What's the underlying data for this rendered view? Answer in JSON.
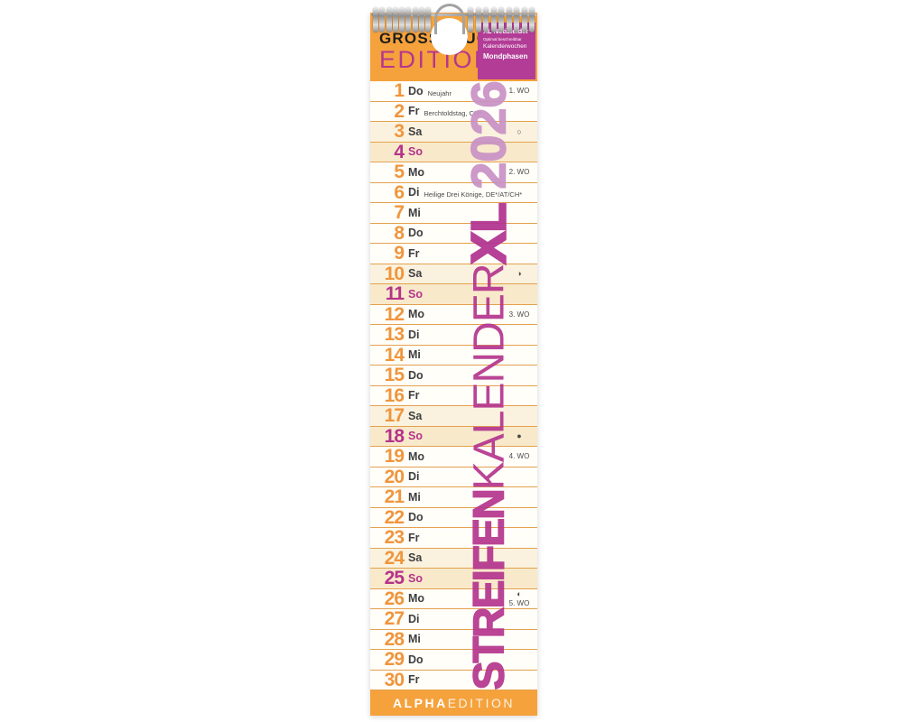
{
  "product": {
    "header": {
      "edition_line1": "GROSSDRUCK",
      "edition_line2": "EDITION",
      "info_box": {
        "line1": "XL Notizfelder",
        "line2": "Optimal beschreibbar",
        "line3": "Kalenderwochen",
        "line4": "Mondphasen"
      }
    },
    "vertical_title": {
      "word_streifen": "STREIFEN",
      "word_kalender": "KALENDER",
      "word_xl": "XL",
      "year": "2026"
    },
    "footer": {
      "brand_bold": "ALPHA",
      "brand_light": "EDITION"
    },
    "moon_glyphs": {
      "full": "○",
      "last": "◑",
      "new": "●",
      "first": "◐"
    },
    "days": [
      {
        "num": "1",
        "abbr": "Do",
        "holiday": "Neujahr",
        "week": "1. WO",
        "moon": ""
      },
      {
        "num": "2",
        "abbr": "Fr",
        "holiday": "Berchtoldstag, CH*",
        "week": "",
        "moon": ""
      },
      {
        "num": "3",
        "abbr": "Sa",
        "holiday": "",
        "week": "",
        "moon": "full"
      },
      {
        "num": "4",
        "abbr": "So",
        "holiday": "",
        "week": "",
        "moon": ""
      },
      {
        "num": "5",
        "abbr": "Mo",
        "holiday": "",
        "week": "2. WO",
        "moon": ""
      },
      {
        "num": "6",
        "abbr": "Di",
        "holiday": "Heilige Drei Könige, DE*/AT/CH*",
        "week": "",
        "moon": ""
      },
      {
        "num": "7",
        "abbr": "Mi",
        "holiday": "",
        "week": "",
        "moon": ""
      },
      {
        "num": "8",
        "abbr": "Do",
        "holiday": "",
        "week": "",
        "moon": ""
      },
      {
        "num": "9",
        "abbr": "Fr",
        "holiday": "",
        "week": "",
        "moon": ""
      },
      {
        "num": "10",
        "abbr": "Sa",
        "holiday": "",
        "week": "",
        "moon": "last"
      },
      {
        "num": "11",
        "abbr": "So",
        "holiday": "",
        "week": "",
        "moon": ""
      },
      {
        "num": "12",
        "abbr": "Mo",
        "holiday": "",
        "week": "3. WO",
        "moon": ""
      },
      {
        "num": "13",
        "abbr": "Di",
        "holiday": "",
        "week": "",
        "moon": ""
      },
      {
        "num": "14",
        "abbr": "Mi",
        "holiday": "",
        "week": "",
        "moon": ""
      },
      {
        "num": "15",
        "abbr": "Do",
        "holiday": "",
        "week": "",
        "moon": ""
      },
      {
        "num": "16",
        "abbr": "Fr",
        "holiday": "",
        "week": "",
        "moon": ""
      },
      {
        "num": "17",
        "abbr": "Sa",
        "holiday": "",
        "week": "",
        "moon": ""
      },
      {
        "num": "18",
        "abbr": "So",
        "holiday": "",
        "week": "",
        "moon": "new"
      },
      {
        "num": "19",
        "abbr": "Mo",
        "holiday": "",
        "week": "4. WO",
        "moon": ""
      },
      {
        "num": "20",
        "abbr": "Di",
        "holiday": "",
        "week": "",
        "moon": ""
      },
      {
        "num": "21",
        "abbr": "Mi",
        "holiday": "",
        "week": "",
        "moon": ""
      },
      {
        "num": "22",
        "abbr": "Do",
        "holiday": "",
        "week": "",
        "moon": ""
      },
      {
        "num": "23",
        "abbr": "Fr",
        "holiday": "",
        "week": "",
        "moon": ""
      },
      {
        "num": "24",
        "abbr": "Sa",
        "holiday": "",
        "week": "",
        "moon": ""
      },
      {
        "num": "25",
        "abbr": "So",
        "holiday": "",
        "week": "",
        "moon": ""
      },
      {
        "num": "26",
        "abbr": "Mo",
        "holiday": "",
        "week": "5. WO",
        "moon": "first"
      },
      {
        "num": "27",
        "abbr": "Di",
        "holiday": "",
        "week": "",
        "moon": ""
      },
      {
        "num": "28",
        "abbr": "Mi",
        "holiday": "",
        "week": "",
        "moon": ""
      },
      {
        "num": "29",
        "abbr": "Do",
        "holiday": "",
        "week": "",
        "moon": ""
      },
      {
        "num": "30",
        "abbr": "Fr",
        "holiday": "",
        "week": "",
        "moon": ""
      }
    ]
  },
  "colors": {
    "orange": "#F5A23C",
    "separator_orange": "#E4A14E",
    "magenta": "#B5368E",
    "info_box_purple": "#B23C96",
    "number_orange": "#F0953C",
    "sunday_magenta": "#B5338A",
    "title_year_light_purple": "#C992C5",
    "saturday_row_bg": "#FAF2DE",
    "sunday_row_bg": "#F8E9CB"
  }
}
